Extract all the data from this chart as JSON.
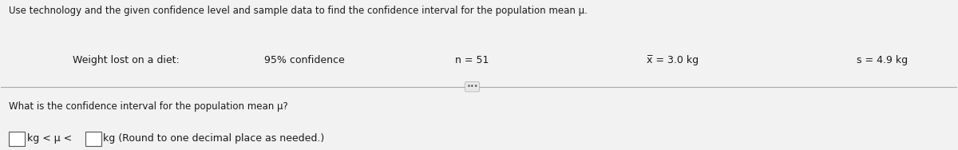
{
  "bg_color": "#f2f2f2",
  "title_text": "Use technology and the given confidence level and sample data to find the confidence interval for the population mean μ.",
  "row_label": "Weight lost on a diet:",
  "col1": "95% confidence",
  "col2": "n = 51",
  "col3": "χ = 3.0 kg",
  "col4": "s = 4.9 kg",
  "question_text": "What is the confidence interval for the population mean μ?",
  "dots_text": "•••",
  "title_fontsize": 8.5,
  "row_fontsize": 9.0,
  "question_fontsize": 8.5,
  "answer_fontsize": 9.0
}
